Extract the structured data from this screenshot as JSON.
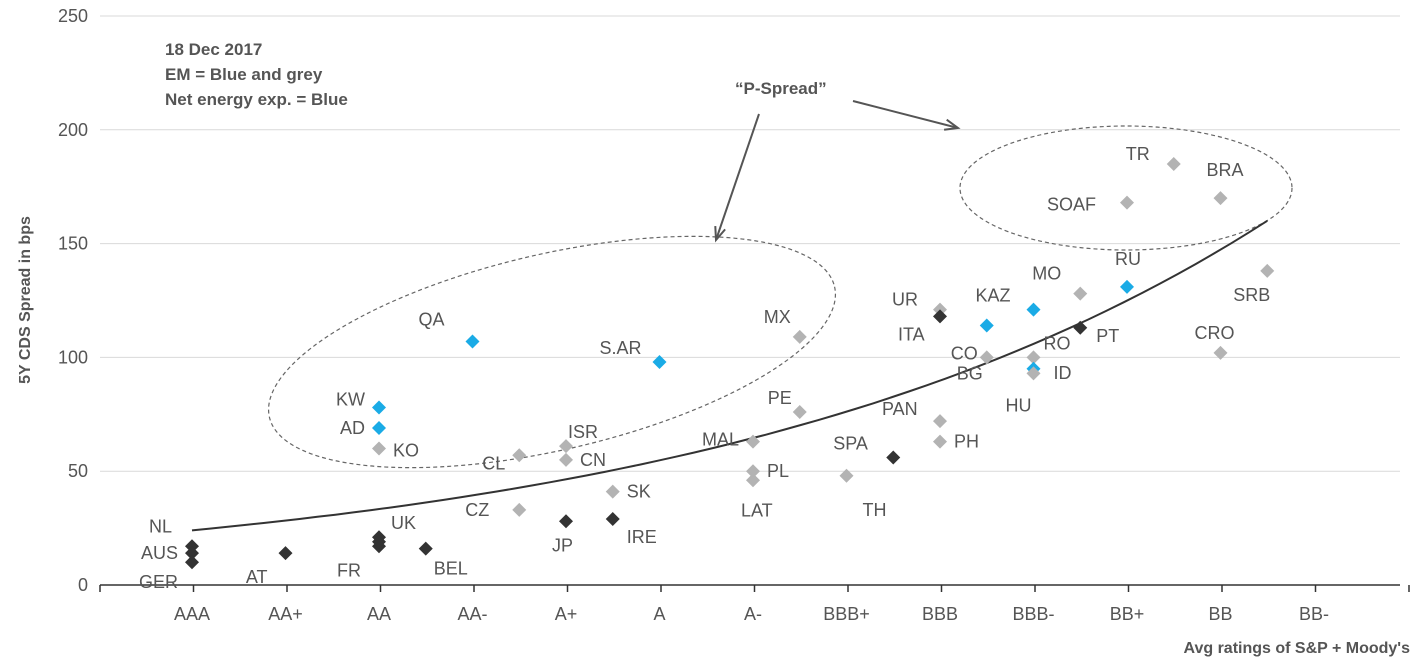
{
  "chart_data": {
    "type": "scatter",
    "title": "",
    "ylabel": "5Y CDS Spread in bps",
    "xlabel": "Avg ratings of S&P + Moody's",
    "ylim": [
      0,
      250
    ],
    "yticks": [
      0,
      50,
      100,
      150,
      200,
      250
    ],
    "categories": [
      "AAA",
      "AA+",
      "AA",
      "AA-",
      "A+",
      "A",
      "A-",
      "BBB+",
      "BBB",
      "BBB-",
      "BB+",
      "BB",
      "BB-"
    ],
    "grid": true,
    "annotations": {
      "note_lines": [
        "18 Dec 2017",
        "EM = Blue and grey",
        "Net energy exp. = Blue"
      ],
      "p_spread": "“P-Spread”"
    },
    "colors": {
      "blue": "#1aabe6",
      "grey": "#b3b3b3",
      "dark": "#333333",
      "curve": "#333333",
      "grid": "#d9d9d9"
    },
    "points": [
      {
        "label": "NL",
        "x": 0,
        "y": 17,
        "color": "dark"
      },
      {
        "label": "AUS",
        "x": 0,
        "y": 14,
        "color": "dark"
      },
      {
        "label": "GER",
        "x": 0,
        "y": 10,
        "color": "dark"
      },
      {
        "label": "AT",
        "x": 1,
        "y": 14,
        "color": "dark"
      },
      {
        "label": "UK",
        "x": 2,
        "y": 21,
        "color": "dark"
      },
      {
        "label": "FR",
        "x": 2,
        "y": 17,
        "color": "dark"
      },
      {
        "label": "",
        "x": 2,
        "y": 19,
        "color": "dark"
      },
      {
        "label": "BEL",
        "x": 2.5,
        "y": 16,
        "color": "dark"
      },
      {
        "label": "KW",
        "x": 2,
        "y": 78,
        "color": "blue"
      },
      {
        "label": "AD",
        "x": 2,
        "y": 69,
        "color": "blue"
      },
      {
        "label": "KO",
        "x": 2,
        "y": 60,
        "color": "grey"
      },
      {
        "label": "QA",
        "x": 3,
        "y": 107,
        "color": "blue"
      },
      {
        "label": "CL",
        "x": 3.5,
        "y": 57,
        "color": "grey"
      },
      {
        "label": "CZ",
        "x": 3.5,
        "y": 33,
        "color": "grey"
      },
      {
        "label": "ISR",
        "x": 4,
        "y": 61,
        "color": "grey"
      },
      {
        "label": "CN",
        "x": 4,
        "y": 55,
        "color": "grey"
      },
      {
        "label": "JP",
        "x": 4,
        "y": 28,
        "color": "dark"
      },
      {
        "label": "SK",
        "x": 4.5,
        "y": 41,
        "color": "grey"
      },
      {
        "label": "IRE",
        "x": 4.5,
        "y": 29,
        "color": "dark"
      },
      {
        "label": "S.AR",
        "x": 5,
        "y": 98,
        "color": "blue"
      },
      {
        "label": "MAL",
        "x": 6,
        "y": 63,
        "color": "grey"
      },
      {
        "label": "PL",
        "x": 6,
        "y": 50,
        "color": "grey"
      },
      {
        "label": "LAT",
        "x": 6,
        "y": 46,
        "color": "grey"
      },
      {
        "label": "MX",
        "x": 6.5,
        "y": 109,
        "color": "grey"
      },
      {
        "label": "PE",
        "x": 6.5,
        "y": 76,
        "color": "grey"
      },
      {
        "label": "TH",
        "x": 7,
        "y": 48,
        "color": "grey"
      },
      {
        "label": "SPA",
        "x": 7.5,
        "y": 56,
        "color": "dark"
      },
      {
        "label": "UR",
        "x": 8,
        "y": 121,
        "color": "grey"
      },
      {
        "label": "ITA",
        "x": 8,
        "y": 118,
        "color": "dark"
      },
      {
        "label": "PAN",
        "x": 8,
        "y": 72,
        "color": "grey"
      },
      {
        "label": "PH",
        "x": 8,
        "y": 63,
        "color": "grey"
      },
      {
        "label": "KAZ",
        "x": 9,
        "y": 121,
        "color": "blue"
      },
      {
        "label": "CO",
        "x": 8.5,
        "y": 114,
        "color": "blue"
      },
      {
        "label": "BG",
        "x": 8.5,
        "y": 100,
        "color": "grey"
      },
      {
        "label": "RO",
        "x": 9,
        "y": 100,
        "color": "grey"
      },
      {
        "label": "ID",
        "x": 9,
        "y": 95,
        "color": "blue"
      },
      {
        "label": "HU",
        "x": 9,
        "y": 93,
        "color": "grey"
      },
      {
        "label": "MO",
        "x": 9.5,
        "y": 128,
        "color": "grey"
      },
      {
        "label": "PT",
        "x": 9.5,
        "y": 113,
        "color": "dark"
      },
      {
        "label": "RU",
        "x": 10,
        "y": 131,
        "color": "blue"
      },
      {
        "label": "SOAF",
        "x": 10,
        "y": 168,
        "color": "grey"
      },
      {
        "label": "TR",
        "x": 10.5,
        "y": 185,
        "color": "grey"
      },
      {
        "label": "BRA",
        "x": 11,
        "y": 170,
        "color": "grey"
      },
      {
        "label": "CRO",
        "x": 11,
        "y": 102,
        "color": "grey"
      },
      {
        "label": "SRB",
        "x": 11.5,
        "y": 138,
        "color": "grey"
      }
    ],
    "trend": {
      "from_x": 0,
      "to_x": 11.5,
      "y_start": 24,
      "y_end": 160
    }
  }
}
